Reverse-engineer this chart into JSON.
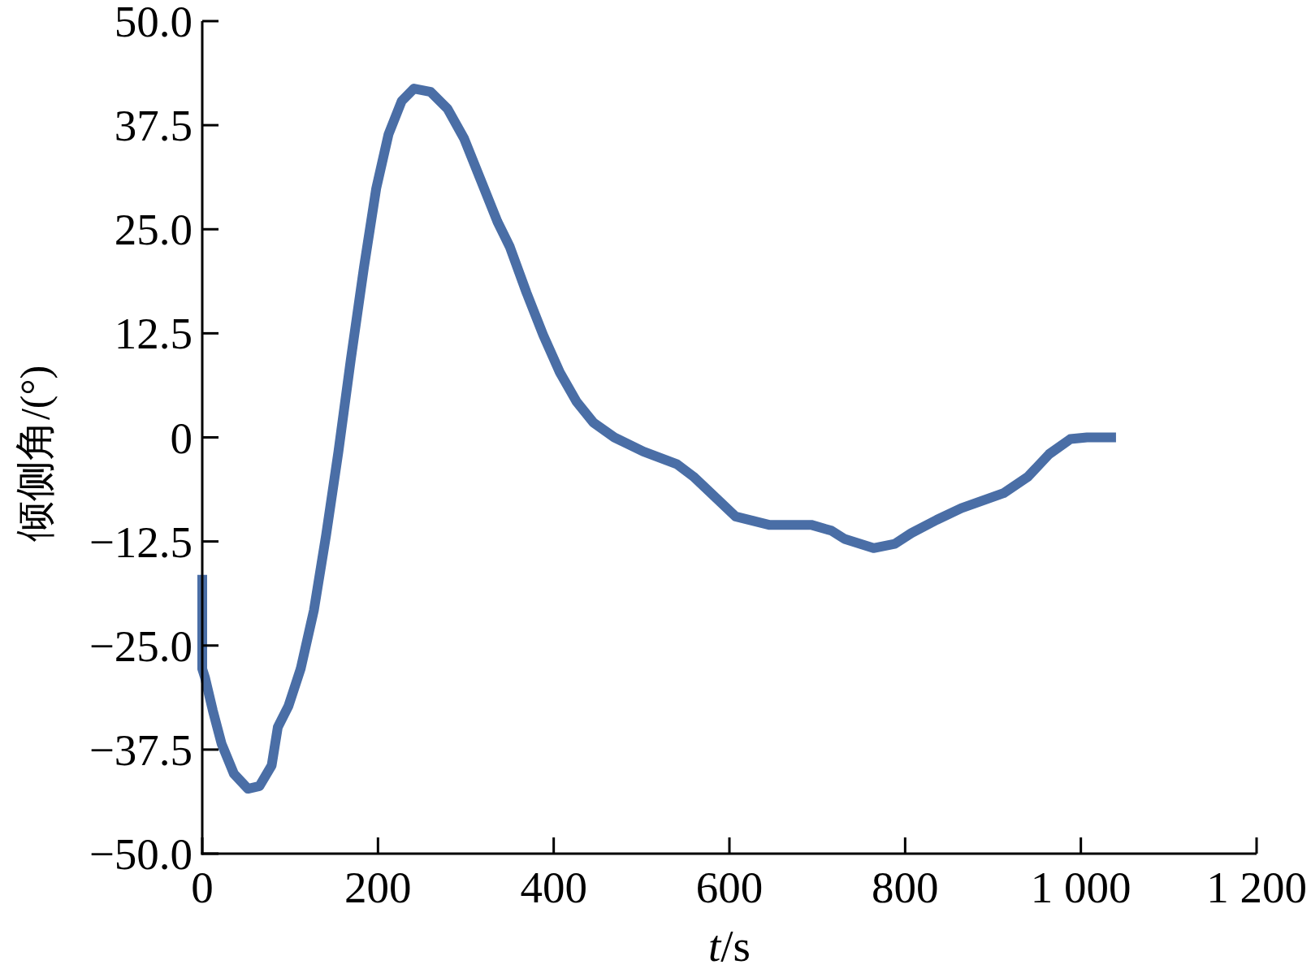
{
  "chart_data": {
    "type": "line",
    "xlabel": "*t*/s",
    "ylabel": "倾侧角/(°)",
    "xlim": [
      0,
      1200
    ],
    "ylim": [
      -50,
      50
    ],
    "xticks": [
      0,
      200,
      400,
      600,
      800,
      {
        "value": 1000,
        "label": "1 000"
      },
      {
        "value": 1200,
        "label": "1 200"
      }
    ],
    "yticks": [
      {
        "value": -50,
        "label": "−50.0"
      },
      {
        "value": -37.5,
        "label": "−37.5"
      },
      {
        "value": -25,
        "label": "−25.0"
      },
      {
        "value": -12.5,
        "label": "−12.5"
      },
      0,
      {
        "value": 12.5,
        "label": "12.5"
      },
      {
        "value": 25,
        "label": "25.0"
      },
      {
        "value": 37.5,
        "label": "37.5"
      },
      {
        "value": 50,
        "label": "50.0"
      }
    ],
    "grid": false,
    "marker": "none",
    "line_style": "solid",
    "series": [
      {
        "color": "#4a6ea6",
        "x": [
          0,
          0,
          3,
          12,
          22,
          36,
          52,
          65,
          79,
          86,
          98,
          112,
          127,
          141,
          155,
          169,
          184,
          198,
          212,
          227,
          241,
          260,
          279,
          298,
          317,
          336,
          350,
          369,
          388,
          407,
          426,
          445,
          469,
          502,
          540,
          559,
          579,
          607,
          645,
          693,
          716,
          731,
          764,
          788,
          807,
          836,
          864,
          912,
          940,
          964,
          988,
          1007,
          1040
        ],
        "values": [
          -16.5,
          -27.8,
          -28.8,
          -32.8,
          -36.8,
          -40.4,
          -42.2,
          -41.9,
          -39.4,
          -34.8,
          -32.3,
          -27.8,
          -20.8,
          -11.7,
          -1.7,
          9.3,
          20.4,
          29.9,
          36.4,
          40.4,
          41.9,
          41.5,
          39.5,
          35.9,
          30.9,
          25.9,
          22.9,
          17.4,
          12.3,
          7.8,
          4.3,
          1.8,
          0,
          -1.7,
          -3.2,
          -4.7,
          -6.7,
          -9.5,
          -10.5,
          -10.5,
          -11.2,
          -12.2,
          -13.3,
          -12.8,
          -11.5,
          -9.9,
          -8.5,
          -6.7,
          -4.7,
          -2.0,
          -0.2,
          0,
          0
        ]
      }
    ]
  }
}
